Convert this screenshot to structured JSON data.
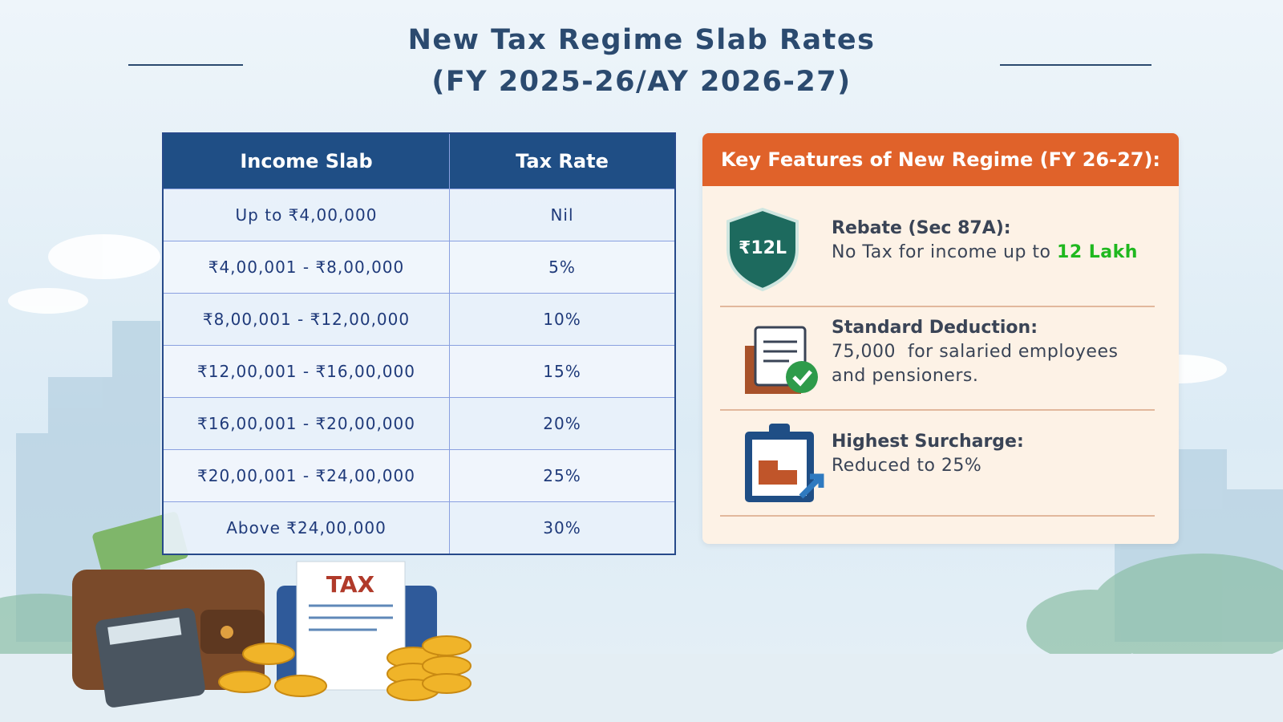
{
  "header": {
    "title_line1": "New Tax Regime Slab Rates",
    "title_line2": "(FY 2025-26/AY 2026-27)"
  },
  "table": {
    "columns": [
      "Income Slab",
      "Tax Rate"
    ],
    "rows": [
      [
        "Up to ₹4,00,000",
        "Nil"
      ],
      [
        "₹4,00,001 - ₹8,00,000",
        "5%"
      ],
      [
        "₹8,00,001 - ₹12,00,000",
        "10%"
      ],
      [
        "₹12,00,001 - ₹16,00,000",
        "15%"
      ],
      [
        "₹16,00,001 - ₹20,00,000",
        "20%"
      ],
      [
        "₹20,00,001 - ₹24,00,000",
        "25%"
      ],
      [
        "Above ₹24,00,000",
        "30%"
      ]
    ]
  },
  "features": {
    "title": "Key Features of New Regime (FY 26-27):",
    "items": [
      {
        "heading": "Rebate (Sec 87A):",
        "text": "No Tax for income up to",
        "highlight": "12 Lakh"
      },
      {
        "heading": "Standard Deduction:",
        "text": "75,000  for salaried employees and pensioners."
      },
      {
        "heading": "Highest Surcharge:",
        "text": "Reduced to 25%"
      }
    ]
  },
  "illustrations": {
    "shield_label": "₹12L",
    "document_label": "TAX"
  }
}
